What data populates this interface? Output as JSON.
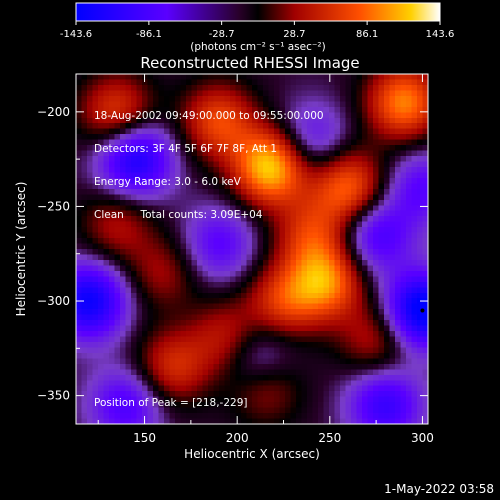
{
  "chart_data": {
    "type": "heatmap",
    "title": "Reconstructed RHESSI Image",
    "xlabel": "Heliocentric X (arcsec)",
    "ylabel": "Heliocentric Y (arcsec)",
    "xlim": [
      113,
      303
    ],
    "ylim": [
      -365,
      -180
    ],
    "x_ticks": [
      150,
      200,
      250,
      300
    ],
    "y_ticks": [
      -200,
      -250,
      -300,
      -350
    ],
    "colorbar": {
      "range": [
        -143.6,
        143.6
      ],
      "ticks": [
        "-143.6",
        "-86.1",
        "-28.7",
        "28.7",
        "86.1",
        "143.6"
      ],
      "unit_label": "(photons cm⁻² s⁻¹ asec⁻²)"
    },
    "annotations": {
      "line1": "18-Aug-2002 09:49:00.000 to 09:55:00.000",
      "line2": "Detectors: 3F 4F 5F 6F 7F 8F, Att 1",
      "line3": "Energy Range: 3.0 - 6.0 keV",
      "line4": "Clean     Total counts: 3.09E+04",
      "peak": "Position of Peak = [218,-229]"
    },
    "peak": {
      "x": 218,
      "y": -229
    },
    "sources": [
      {
        "x": 218,
        "y": -229,
        "value": 140
      },
      {
        "x": 290,
        "y": -195,
        "value": 110
      },
      {
        "x": 190,
        "y": -205,
        "value": 85
      },
      {
        "x": 135,
        "y": -200,
        "value": 80
      },
      {
        "x": 260,
        "y": -240,
        "value": 100
      },
      {
        "x": 240,
        "y": -265,
        "value": 70
      },
      {
        "x": 248,
        "y": -290,
        "value": 105
      },
      {
        "x": 225,
        "y": -300,
        "value": 75
      },
      {
        "x": 195,
        "y": -320,
        "value": 65
      },
      {
        "x": 165,
        "y": -335,
        "value": 70
      },
      {
        "x": 215,
        "y": -345,
        "value": 55
      },
      {
        "x": 275,
        "y": -320,
        "value": 55
      },
      {
        "x": 135,
        "y": -260,
        "value": 50
      },
      {
        "x": 160,
        "y": -285,
        "value": 45
      }
    ],
    "negatives": [
      {
        "x": 145,
        "y": -225,
        "value": -110
      },
      {
        "x": 120,
        "y": -300,
        "value": -120
      },
      {
        "x": 300,
        "y": -305,
        "value": -143
      },
      {
        "x": 190,
        "y": -270,
        "value": -60
      },
      {
        "x": 275,
        "y": -265,
        "value": -75
      },
      {
        "x": 240,
        "y": -215,
        "value": -55
      },
      {
        "x": 280,
        "y": -355,
        "value": -85
      },
      {
        "x": 210,
        "y": -330,
        "value": -65
      },
      {
        "x": 140,
        "y": -355,
        "value": -70
      },
      {
        "x": 300,
        "y": -240,
        "value": -60
      }
    ]
  },
  "footer": {
    "timestamp": "1-May-2022 03:58"
  }
}
